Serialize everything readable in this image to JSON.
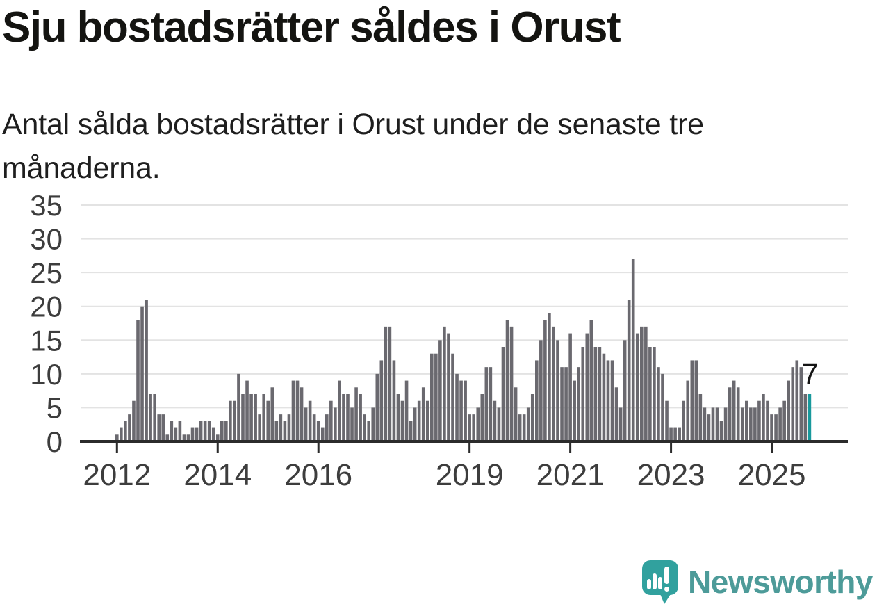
{
  "header": {
    "title": "Sju bostadsrätter såldes i Orust",
    "subtitle": "Antal sålda bostadsrätter i Orust under de senaste tre månaderna."
  },
  "chart_data": {
    "type": "bar",
    "title": "Sju bostadsrätter såldes i Orust",
    "subtitle": "Antal sålda bostadsrätter i Orust under de senaste tre månaderna.",
    "xlabel": "",
    "ylabel": "",
    "ylim": [
      0,
      35
    ],
    "y_ticks": [
      0,
      5,
      10,
      15,
      20,
      25,
      30,
      35
    ],
    "grid": true,
    "legend": false,
    "x_tick_labels": [
      {
        "index": 0,
        "label": "2012"
      },
      {
        "index": 24,
        "label": "2014"
      },
      {
        "index": 48,
        "label": "2016"
      },
      {
        "index": 84,
        "label": "2019"
      },
      {
        "index": 108,
        "label": "2021"
      },
      {
        "index": 132,
        "label": "2023"
      },
      {
        "index": 156,
        "label": "2025"
      }
    ],
    "values": [
      1,
      2,
      3,
      4,
      6,
      18,
      20,
      21,
      7,
      7,
      4,
      4,
      1,
      3,
      2,
      3,
      1,
      1,
      2,
      2,
      3,
      3,
      3,
      2,
      1,
      3,
      3,
      6,
      6,
      10,
      7,
      9,
      7,
      7,
      4,
      7,
      6,
      8,
      3,
      4,
      3,
      4,
      9,
      9,
      8,
      5,
      6,
      4,
      3,
      2,
      4,
      6,
      5,
      9,
      7,
      7,
      5,
      8,
      7,
      4,
      3,
      5,
      10,
      12,
      17,
      17,
      12,
      7,
      6,
      9,
      3,
      5,
      6,
      8,
      6,
      13,
      13,
      15,
      17,
      16,
      13,
      10,
      9,
      9,
      4,
      4,
      5,
      7,
      11,
      11,
      6,
      5,
      14,
      18,
      17,
      8,
      4,
      4,
      5,
      7,
      12,
      15,
      18,
      19,
      17,
      15,
      11,
      11,
      16,
      9,
      11,
      14,
      16,
      18,
      14,
      14,
      13,
      12,
      12,
      8,
      5,
      15,
      21,
      27,
      16,
      17,
      17,
      14,
      14,
      11,
      10,
      6,
      2,
      2,
      2,
      6,
      9,
      12,
      12,
      7,
      5,
      4,
      5,
      5,
      3,
      5,
      8,
      9,
      8,
      5,
      6,
      5,
      5,
      6,
      7,
      6,
      4,
      4,
      5,
      6,
      9,
      11,
      12,
      11,
      7,
      7
    ],
    "highlight_last_bar": true,
    "last_value_label": "7",
    "last_value": 7,
    "colors": {
      "bar": "#6a696f",
      "highlight": "#18999c",
      "axis": "#2b2b2b",
      "grid": "#e3e3e3",
      "tick_label": "#3d3d3d",
      "annotation": "#151515"
    }
  },
  "footer": {
    "brand": "Newsworthy",
    "logo_color": "#31a19e",
    "text_color": "#4d9b99"
  }
}
